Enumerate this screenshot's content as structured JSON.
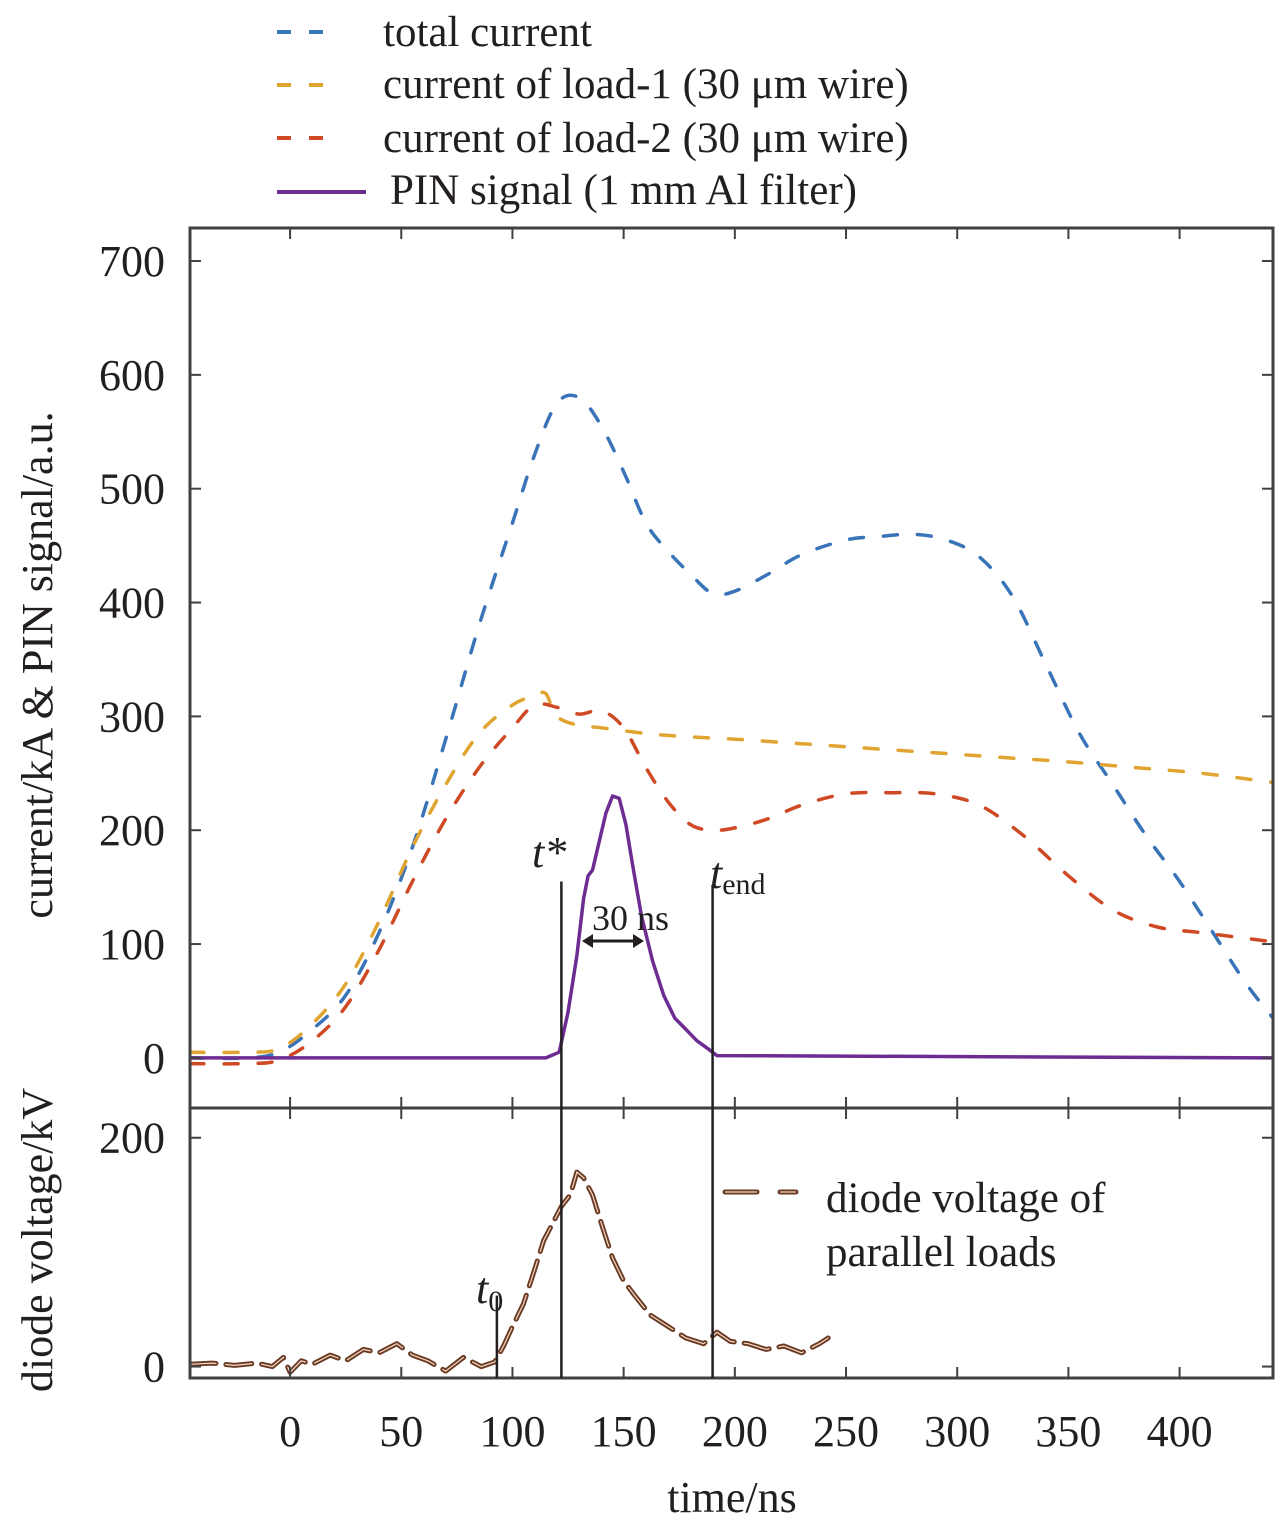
{
  "chart_data": [
    {
      "panel": "top",
      "type": "line",
      "xlabel": "time/ns",
      "ylabel": "current/kA & PIN signal/a.u.",
      "xlim": [
        -45,
        442
      ],
      "ylim": [
        -44,
        729
      ],
      "x_ticks": [
        0,
        50,
        100,
        150,
        200,
        250,
        300,
        350,
        400
      ],
      "y_ticks": [
        0,
        100,
        200,
        300,
        400,
        500,
        600,
        700
      ],
      "y_tick_labels": [
        "0",
        "100",
        "200",
        "300",
        "400",
        "500",
        "600",
        "700"
      ],
      "legend_position": "above-plot",
      "series": [
        {
          "name": "total current",
          "style": "dashed",
          "color": "#3a74b8",
          "x": [
            -45,
            -20,
            -5,
            10,
            25,
            40,
            55,
            70,
            85,
            100,
            110,
            120,
            130,
            140,
            150,
            160,
            170,
            180,
            190,
            200,
            215,
            230,
            250,
            265,
            280,
            295,
            310,
            325,
            340,
            355,
            370,
            385,
            400,
            415,
            430,
            442
          ],
          "y": [
            0,
            0,
            5,
            25,
            55,
            110,
            185,
            280,
            380,
            470,
            530,
            575,
            580,
            555,
            515,
            470,
            445,
            425,
            408,
            410,
            425,
            442,
            455,
            458,
            460,
            455,
            440,
            405,
            345,
            285,
            240,
            195,
            155,
            110,
            65,
            35
          ]
        },
        {
          "name": "current of load-1 (30 μm wire)",
          "style": "dashed",
          "color": "#e0a431",
          "x": [
            -45,
            -20,
            -5,
            10,
            25,
            40,
            55,
            70,
            85,
            100,
            110,
            115,
            120,
            130,
            140,
            160,
            180,
            200,
            230,
            260,
            290,
            320,
            350,
            380,
            410,
            442
          ],
          "y": [
            5,
            5,
            8,
            30,
            65,
            120,
            185,
            240,
            285,
            310,
            318,
            320,
            300,
            292,
            290,
            285,
            282,
            280,
            276,
            272,
            268,
            264,
            260,
            255,
            250,
            242
          ]
        },
        {
          "name": "current of load-2 (30 μm wire)",
          "style": "dashed",
          "color": "#cf4a24",
          "x": [
            -45,
            -20,
            -5,
            10,
            25,
            40,
            55,
            70,
            85,
            100,
            110,
            120,
            130,
            140,
            150,
            160,
            170,
            180,
            190,
            200,
            215,
            230,
            250,
            270,
            290,
            310,
            330,
            350,
            370,
            390,
            410,
            442
          ],
          "y": [
            -5,
            -5,
            -2,
            15,
            45,
            95,
            155,
            210,
            255,
            290,
            310,
            308,
            302,
            305,
            290,
            255,
            225,
            205,
            200,
            202,
            210,
            222,
            232,
            233,
            232,
            222,
            195,
            160,
            130,
            115,
            110,
            102
          ]
        },
        {
          "name": "PIN signal (1 mm Al filter)",
          "style": "solid",
          "color": "#6c2c91",
          "x": [
            -45,
            115,
            121,
            125,
            129,
            132,
            134,
            136,
            139,
            142,
            145,
            148,
            151,
            154,
            158,
            163,
            168,
            173,
            178,
            183,
            188,
            192,
            442
          ],
          "y": [
            0,
            0,
            5,
            40,
            90,
            140,
            160,
            165,
            190,
            215,
            230,
            228,
            205,
            170,
            125,
            85,
            55,
            35,
            25,
            15,
            8,
            2,
            0
          ]
        }
      ]
    },
    {
      "panel": "bottom",
      "type": "line",
      "xlabel": "time/ns",
      "ylabel": "diode voltage/kV",
      "xlim": [
        -45,
        442
      ],
      "ylim": [
        -10,
        226
      ],
      "x_ticks": [
        0,
        50,
        100,
        150,
        200,
        250,
        300,
        350,
        400
      ],
      "x_tick_labels": [
        "0",
        "50",
        "100",
        "150",
        "200",
        "250",
        "300",
        "350",
        "400"
      ],
      "y_ticks": [
        0,
        200
      ],
      "y_tick_labels": [
        "0",
        "200"
      ],
      "legend_position": "right",
      "series": [
        {
          "name": "diode voltage of parallel loads",
          "style": "dashed",
          "color": "#6b3a22",
          "x": [
            -45,
            -35,
            -25,
            -15,
            -8,
            -3,
            0,
            5,
            10,
            18,
            25,
            33,
            40,
            48,
            55,
            62,
            70,
            78,
            86,
            92,
            96,
            100,
            105,
            110,
            114,
            118,
            122,
            126,
            129,
            132,
            136,
            140,
            145,
            150,
            155,
            162,
            170,
            178,
            186,
            192,
            198,
            206,
            214,
            222,
            230,
            238,
            242
          ],
          "y": [
            2,
            3,
            1,
            3,
            0,
            8,
            -5,
            5,
            2,
            10,
            5,
            15,
            12,
            20,
            10,
            5,
            -4,
            8,
            0,
            4,
            18,
            35,
            55,
            85,
            110,
            125,
            140,
            150,
            170,
            165,
            150,
            125,
            95,
            75,
            62,
            45,
            35,
            25,
            20,
            30,
            22,
            20,
            15,
            18,
            12,
            20,
            25
          ]
        }
      ]
    }
  ],
  "legend": {
    "items": [
      {
        "label": "total current",
        "color": "#3a74b8",
        "style": "dashed"
      },
      {
        "label": "current of load-1 (30 μm wire)",
        "color": "#e0a431",
        "style": "dashed"
      },
      {
        "label": "current of load-2 (30 μm wire)",
        "color": "#cf4a24",
        "style": "dashed"
      },
      {
        "label": "PIN signal (1 mm Al filter)",
        "color": "#6c2c91",
        "style": "solid"
      }
    ],
    "diode_line1": "diode voltage of",
    "diode_line2": "parallel loads",
    "diode_color": "#6b3a22"
  },
  "annotations": {
    "t_star": {
      "label": "t*",
      "time": 122
    },
    "t_end": {
      "label_main": "t",
      "label_sub": "end",
      "time": 190
    },
    "t_zero": {
      "label_main": "t",
      "label_sub": "0",
      "time": 93
    },
    "fwhm": {
      "label": "30 ns",
      "from": 132,
      "to": 146,
      "level": 100
    }
  },
  "axes": {
    "x_title": "time/ns",
    "y_title_top": "current/kA & PIN signal/a.u.",
    "y_title_bottom": "diode voltage/kV",
    "axis_color": "#414042",
    "text_color": "#231f20"
  }
}
